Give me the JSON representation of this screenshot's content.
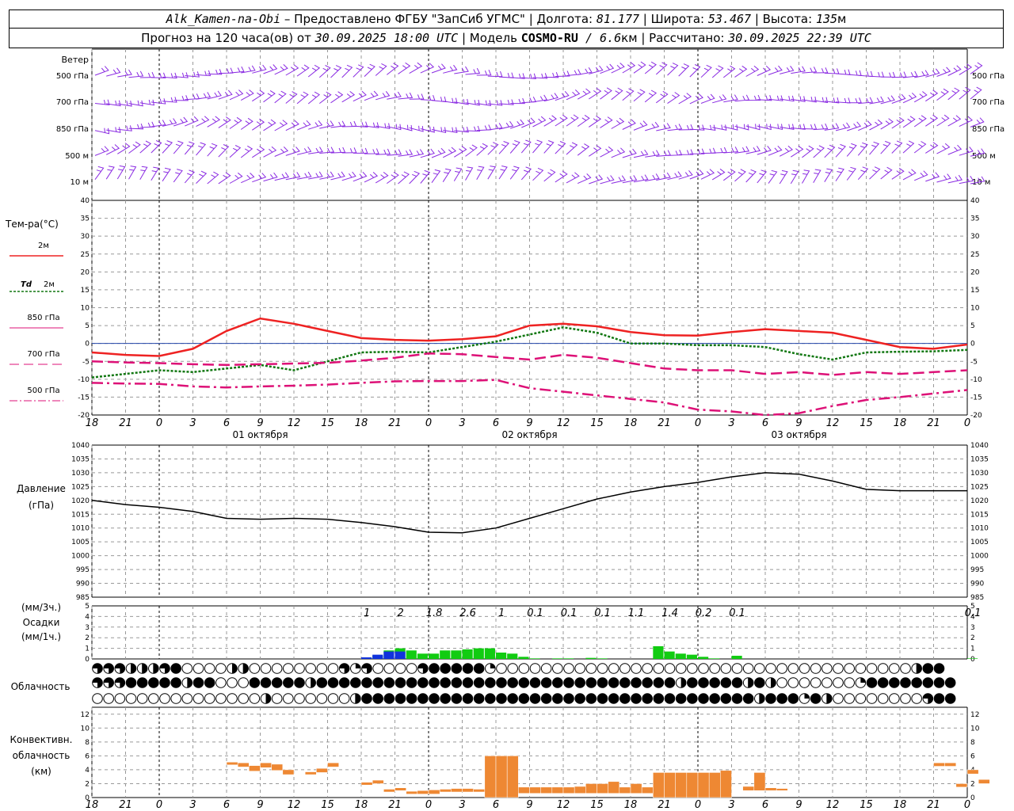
{
  "header": {
    "station": "Alk_Kamen-na-Obi",
    "provider": " – Предоставлено ФГБУ \"ЗапСиб УГМС\" | Долгота: ",
    "lon": "81.177",
    "lat_label": " | Широта: ",
    "lat": "53.467",
    "alt_label": " | Высота: ",
    "alt": "135",
    "alt_unit": "м",
    "forecast_label": "Прогноз на 120 часа(ов) от ",
    "forecast_time": "30.09.2025 18:00 UTC",
    "model_label": " | Модель ",
    "model": "COSMO-RU",
    "model_res": " / 6.6",
    "model_res_unit": "км",
    "calc_label": " | Рассчитано: ",
    "calc_time": "30.09.2025 22:39 UTC"
  },
  "colors": {
    "wind": "#8a2be2",
    "t2m": "#ee2222",
    "td2m": "#117711",
    "t850": "#dd1177",
    "t700": "#dd1177",
    "t500": "#dd1177",
    "pressure": "#000000",
    "precip_green": "#11cc11",
    "precip_blue": "#1133dd",
    "convective": "#ee8833"
  },
  "labels": {
    "wind_title": "Ветер",
    "wind_levels": [
      "500 гПа",
      "700 гПа",
      "850 гПа",
      "500 м",
      "10  м"
    ],
    "temp_title": "Тем-ра(°C)",
    "t2m_label": "2м",
    "td_label": "Td",
    "td_sub": "2м",
    "t850_label": "850 гПа",
    "t700_label": "700 гПа",
    "t500_label": "500 гПа",
    "pressure_title": "Давление",
    "pressure_unit": "(гПа)",
    "precip_unit3": "(мм/3ч.)",
    "precip_title": "Осадки",
    "precip_unit1": "(мм/1ч.)",
    "cloud_title": "Облачность",
    "conv_title1": "Конвективн.",
    "conv_title2": "облачность",
    "conv_unit": "(км)"
  },
  "axis": {
    "hour_ticks": [
      "18",
      "21",
      "0",
      "3",
      "6",
      "9",
      "12",
      "15",
      "18",
      "21",
      "0",
      "3",
      "6",
      "9",
      "12",
      "15",
      "18",
      "21",
      "0",
      "3",
      "6",
      "9",
      "12",
      "15",
      "18",
      "21",
      "0"
    ],
    "day_labels": [
      {
        "text": "01 октября",
        "hour": 15
      },
      {
        "text": "02 октября",
        "hour": 39
      },
      {
        "text": "03 октября",
        "hour": 63
      }
    ],
    "day_separators_hours": [
      6,
      30,
      54,
      78
    ]
  },
  "chart_data": [
    {
      "type": "line",
      "name": "temperature",
      "x_unit": "hours since 30.09.2025 18:00 UTC",
      "ylim": [
        -20,
        40
      ],
      "yticks": [
        -20,
        -15,
        -10,
        -5,
        0,
        5,
        10,
        15,
        20,
        25,
        30,
        35,
        40
      ],
      "series": [
        {
          "name": "2м",
          "x": [
            0,
            3,
            6,
            9,
            12,
            15,
            18,
            21,
            24,
            27,
            30,
            33,
            36,
            39,
            42,
            45,
            48,
            51,
            54,
            57,
            60,
            63,
            66,
            69,
            72,
            75,
            78
          ],
          "values": [
            -2.5,
            -3.2,
            -3.5,
            -1.5,
            3.5,
            7,
            5.5,
            3.5,
            1.5,
            1,
            0.8,
            1.2,
            2,
            5,
            5.5,
            4.8,
            3.2,
            2.3,
            2.2,
            3.2,
            4,
            3.5,
            3,
            1,
            -1,
            -1.5,
            -0.3
          ]
        },
        {
          "name": "Td 2м",
          "x": [
            0,
            3,
            6,
            9,
            12,
            15,
            18,
            21,
            24,
            27,
            30,
            33,
            36,
            39,
            42,
            45,
            48,
            51,
            54,
            57,
            60,
            63,
            66,
            69,
            72,
            75,
            78
          ],
          "values": [
            -9.5,
            -8.5,
            -7.5,
            -8,
            -7,
            -6,
            -7.5,
            -5,
            -2.5,
            -2.3,
            -2.5,
            -1,
            0.5,
            2.5,
            4.5,
            3,
            0,
            0,
            -0.5,
            -0.5,
            -1,
            -3,
            -4.5,
            -2.5,
            -2.3,
            -2.2,
            -1.8
          ]
        },
        {
          "name": "850 гПа",
          "x": [
            0,
            3,
            6,
            9,
            12,
            15,
            18,
            21,
            24,
            27,
            30,
            33,
            36,
            39,
            42,
            45,
            48,
            51,
            54,
            57,
            60,
            63,
            66,
            69,
            72,
            75,
            78
          ],
          "values": [
            -5,
            -5.3,
            -5.5,
            -5.8,
            -6,
            -5.8,
            -5.6,
            -5.4,
            -4.8,
            -4,
            -2.8,
            -3,
            -3.8,
            -4.5,
            -3.2,
            -4,
            -5.5,
            -7,
            -7.5,
            -7.5,
            -8.5,
            -8,
            -8.8,
            -8,
            -8.5,
            -8,
            -7.5
          ]
        },
        {
          "name": "500 гПа",
          "x": [
            0,
            3,
            6,
            9,
            12,
            15,
            18,
            21,
            24,
            27,
            30,
            33,
            36,
            39,
            42,
            45,
            48,
            51,
            54,
            57,
            60,
            63,
            66,
            69,
            72,
            75,
            78
          ],
          "values": [
            -11,
            -11.2,
            -11.3,
            -12,
            -12.3,
            -12,
            -11.8,
            -11.5,
            -11,
            -10.6,
            -10.5,
            -10.5,
            -10.2,
            -12.5,
            -13.5,
            -14.5,
            -15.5,
            -16.5,
            -18.5,
            -19,
            -20,
            -19.5,
            -17.5,
            -15.8,
            -15,
            -14,
            -13
          ]
        }
      ]
    },
    {
      "type": "line",
      "name": "pressure",
      "ylim": [
        985,
        1040
      ],
      "yticks": [
        985,
        990,
        995,
        1000,
        1005,
        1010,
        1015,
        1020,
        1025,
        1030,
        1035,
        1040
      ],
      "x": [
        0,
        3,
        6,
        9,
        12,
        15,
        18,
        21,
        24,
        27,
        30,
        33,
        36,
        39,
        42,
        45,
        48,
        51,
        54,
        57,
        60,
        63,
        66,
        69,
        72,
        75,
        78
      ],
      "values": [
        1020,
        1018.5,
        1017.5,
        1016,
        1013.5,
        1013.2,
        1013.5,
        1013.2,
        1012,
        1010.5,
        1008.5,
        1008.3,
        1010,
        1013.5,
        1017,
        1020.5,
        1023,
        1025,
        1026.5,
        1028.5,
        1030,
        1029.5,
        1027,
        1024,
        1023.5,
        1023.5,
        1023.5
      ]
    },
    {
      "type": "bar",
      "name": "precipitation",
      "ylim": [
        0,
        5
      ],
      "yticks": [
        0,
        1,
        2,
        3,
        4,
        5
      ],
      "labels_3h": [
        {
          "hour": 24.5,
          "text": "1"
        },
        {
          "hour": 27.5,
          "text": "2"
        },
        {
          "hour": 30.5,
          "text": "1.8"
        },
        {
          "hour": 33.5,
          "text": "2.6"
        },
        {
          "hour": 36.5,
          "text": "1"
        },
        {
          "hour": 39.5,
          "text": "0.1"
        },
        {
          "hour": 42.5,
          "text": "0.1"
        },
        {
          "hour": 45.5,
          "text": "0.1"
        },
        {
          "hour": 48.5,
          "text": "1.1"
        },
        {
          "hour": 51.5,
          "text": "1.4"
        },
        {
          "hour": 54.5,
          "text": "0.2"
        },
        {
          "hour": 57.5,
          "text": "0.1"
        },
        {
          "hour": 78.5,
          "text": "0.1"
        }
      ],
      "green_hourly": [
        {
          "hour": 24,
          "value": 0.1
        },
        {
          "hour": 25,
          "value": 0.3
        },
        {
          "hour": 26,
          "value": 0.8
        },
        {
          "hour": 27,
          "value": 1.0
        },
        {
          "hour": 28,
          "value": 0.8
        },
        {
          "hour": 29,
          "value": 0.5
        },
        {
          "hour": 30,
          "value": 0.5
        },
        {
          "hour": 31,
          "value": 0.8
        },
        {
          "hour": 32,
          "value": 0.8
        },
        {
          "hour": 33,
          "value": 0.9
        },
        {
          "hour": 34,
          "value": 1.0
        },
        {
          "hour": 35,
          "value": 1.0
        },
        {
          "hour": 36,
          "value": 0.6
        },
        {
          "hour": 37,
          "value": 0.5
        },
        {
          "hour": 38,
          "value": 0.2
        },
        {
          "hour": 39,
          "value": 0.05
        },
        {
          "hour": 41,
          "value": 0.05
        },
        {
          "hour": 42,
          "value": 0.05
        },
        {
          "hour": 44,
          "value": 0.1
        },
        {
          "hour": 45,
          "value": 0.05
        },
        {
          "hour": 50,
          "value": 1.2
        },
        {
          "hour": 51,
          "value": 0.7
        },
        {
          "hour": 52,
          "value": 0.5
        },
        {
          "hour": 53,
          "value": 0.4
        },
        {
          "hour": 54,
          "value": 0.2
        },
        {
          "hour": 55,
          "value": 0.05
        },
        {
          "hour": 57,
          "value": 0.3
        },
        {
          "hour": 78,
          "value": 0.05
        }
      ],
      "blue_hourly": [
        {
          "hour": 24,
          "value": 0.15
        },
        {
          "hour": 25,
          "value": 0.4
        },
        {
          "hour": 26,
          "value": 0.7
        },
        {
          "hour": 27,
          "value": 0.7
        }
      ]
    },
    {
      "type": "table",
      "name": "cloudiness",
      "hours_per_cell": 1,
      "rows": [
        "ttpfffthccccefcccccccctrpccccphhhhhqcccccccccccccccccccccccccccccccccccccfhh",
        "mmmhhhhhehhccchhhhhehhhhhhhhhhhhhhhhhhhhhhhhhhhhhhhhehhhhhfhecccccccqhhhhhhhh",
        "cccccccccccccccecccccccfhhhhhhhhhhhhhhhhhhhhhhhhhhhhhhhhhhhfhhhqhfccccccccphh"
      ],
      "legend_codes": {
        "c": "clear",
        "q": "quarter",
        "e": "half",
        "t": "three-quarter",
        "h": "overcast",
        "f": "half",
        "p": "three-quarter",
        "m": "three-quarter",
        "r": "quarter"
      }
    },
    {
      "type": "bar",
      "name": "convective_cloudiness",
      "ylim": [
        0,
        13
      ],
      "yticks": [
        0,
        2,
        4,
        6,
        8,
        10,
        12
      ],
      "segments": [
        {
          "hour": 12,
          "base": 4.7,
          "top": 5.1
        },
        {
          "hour": 13,
          "base": 4.4,
          "top": 5.0
        },
        {
          "hour": 14,
          "base": 3.8,
          "top": 4.6
        },
        {
          "hour": 15,
          "base": 4.3,
          "top": 5.0
        },
        {
          "hour": 16,
          "base": 3.9,
          "top": 4.8
        },
        {
          "hour": 17,
          "base": 3.3,
          "top": 4.0
        },
        {
          "hour": 19,
          "base": 3.3,
          "top": 3.7
        },
        {
          "hour": 20,
          "base": 3.6,
          "top": 4.2
        },
        {
          "hour": 21,
          "base": 4.4,
          "top": 5.0
        },
        {
          "hour": 24,
          "base": 1.8,
          "top": 2.2
        },
        {
          "hour": 25,
          "base": 2.0,
          "top": 2.5
        },
        {
          "hour": 26,
          "base": 0.8,
          "top": 1.2
        },
        {
          "hour": 27,
          "base": 1.0,
          "top": 1.4
        },
        {
          "hour": 28,
          "base": 0.5,
          "top": 0.9
        },
        {
          "hour": 29,
          "base": 0.5,
          "top": 1.0
        },
        {
          "hour": 30,
          "base": 0.5,
          "top": 1.1
        },
        {
          "hour": 31,
          "base": 0.8,
          "top": 1.2
        },
        {
          "hour": 32,
          "base": 0.8,
          "top": 1.3
        },
        {
          "hour": 33,
          "base": 0.8,
          "top": 1.3
        },
        {
          "hour": 34,
          "base": 0.8,
          "top": 1.2
        },
        {
          "hour": 35,
          "base": 0.0,
          "top": 6.0
        },
        {
          "hour": 36,
          "base": 0.0,
          "top": 6.0
        },
        {
          "hour": 37,
          "base": 0.0,
          "top": 6.0
        },
        {
          "hour": 38,
          "base": 0.6,
          "top": 1.5
        },
        {
          "hour": 39,
          "base": 0.6,
          "top": 1.5
        },
        {
          "hour": 40,
          "base": 0.6,
          "top": 1.5
        },
        {
          "hour": 41,
          "base": 0.6,
          "top": 1.5
        },
        {
          "hour": 42,
          "base": 0.6,
          "top": 1.5
        },
        {
          "hour": 43,
          "base": 0.6,
          "top": 1.6
        },
        {
          "hour": 44,
          "base": 0.6,
          "top": 2.0
        },
        {
          "hour": 45,
          "base": 0.6,
          "top": 2.0
        },
        {
          "hour": 46,
          "base": 0.6,
          "top": 2.3
        },
        {
          "hour": 47,
          "base": 0.6,
          "top": 1.5
        },
        {
          "hour": 48,
          "base": 0.6,
          "top": 2.0
        },
        {
          "hour": 49,
          "base": 0.6,
          "top": 1.5
        },
        {
          "hour": 50,
          "base": 0.0,
          "top": 3.6
        },
        {
          "hour": 51,
          "base": 0.0,
          "top": 3.6
        },
        {
          "hour": 52,
          "base": 0.0,
          "top": 3.6
        },
        {
          "hour": 53,
          "base": 0.0,
          "top": 3.6
        },
        {
          "hour": 54,
          "base": 0.0,
          "top": 3.6
        },
        {
          "hour": 55,
          "base": 0.0,
          "top": 3.6
        },
        {
          "hour": 56,
          "base": 0.0,
          "top": 3.9
        },
        {
          "hour": 58,
          "base": 1.0,
          "top": 1.6
        },
        {
          "hour": 59,
          "base": 1.0,
          "top": 3.6
        },
        {
          "hour": 60,
          "base": 1.0,
          "top": 1.4
        },
        {
          "hour": 61,
          "base": 1.0,
          "top": 1.3
        },
        {
          "hour": 75,
          "base": 4.5,
          "top": 5.0
        },
        {
          "hour": 76,
          "base": 4.5,
          "top": 5.0
        },
        {
          "hour": 77,
          "base": 1.5,
          "top": 2.0
        },
        {
          "hour": 78,
          "base": 3.4,
          "top": 4.0
        },
        {
          "hour": 79,
          "base": 2.0,
          "top": 2.6
        }
      ]
    }
  ]
}
